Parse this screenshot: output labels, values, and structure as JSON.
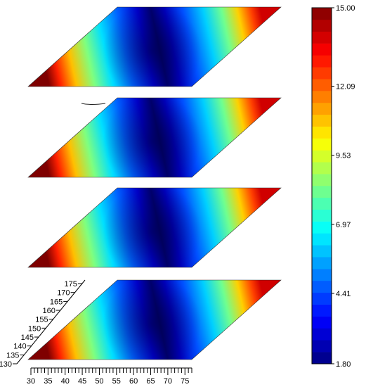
{
  "chart_data": {
    "type": "heatmap",
    "view": "stacked 3D slices (oblique projection)",
    "slices": 4,
    "field_pattern": "low values in a central diagonal trough, rising to high values at the left and right edges",
    "x_axis": {
      "range": [
        30,
        77
      ],
      "ticks": [
        30,
        35,
        40,
        45,
        50,
        55,
        60,
        65,
        70,
        75
      ],
      "tick_labels": [
        "30",
        "35",
        "40",
        "45",
        "50",
        "55",
        "60",
        "65",
        "70",
        "75"
      ]
    },
    "y_axis": {
      "range": [
        130,
        177
      ],
      "ticks": [
        130,
        135,
        140,
        145,
        150,
        155,
        160,
        165,
        170,
        175
      ],
      "tick_labels": [
        "130",
        "135",
        "140",
        "145",
        "150",
        "155",
        "160",
        "165",
        "170",
        "175"
      ]
    },
    "colorbar": {
      "min": 1.8,
      "max": 15.0,
      "tick_values": [
        15.0,
        12.09,
        9.53,
        6.97,
        4.41,
        1.8
      ],
      "tick_labels": [
        "15.00",
        "12.09",
        "9.53",
        "6.97",
        "4.41",
        "1.80"
      ],
      "bands": 30,
      "colormap": "jet",
      "colors": [
        "#00007f",
        "#0000ff",
        "#007fff",
        "#00ffff",
        "#7fff7f",
        "#ffff00",
        "#ff7f00",
        "#ff0000",
        "#7f0000"
      ]
    }
  }
}
